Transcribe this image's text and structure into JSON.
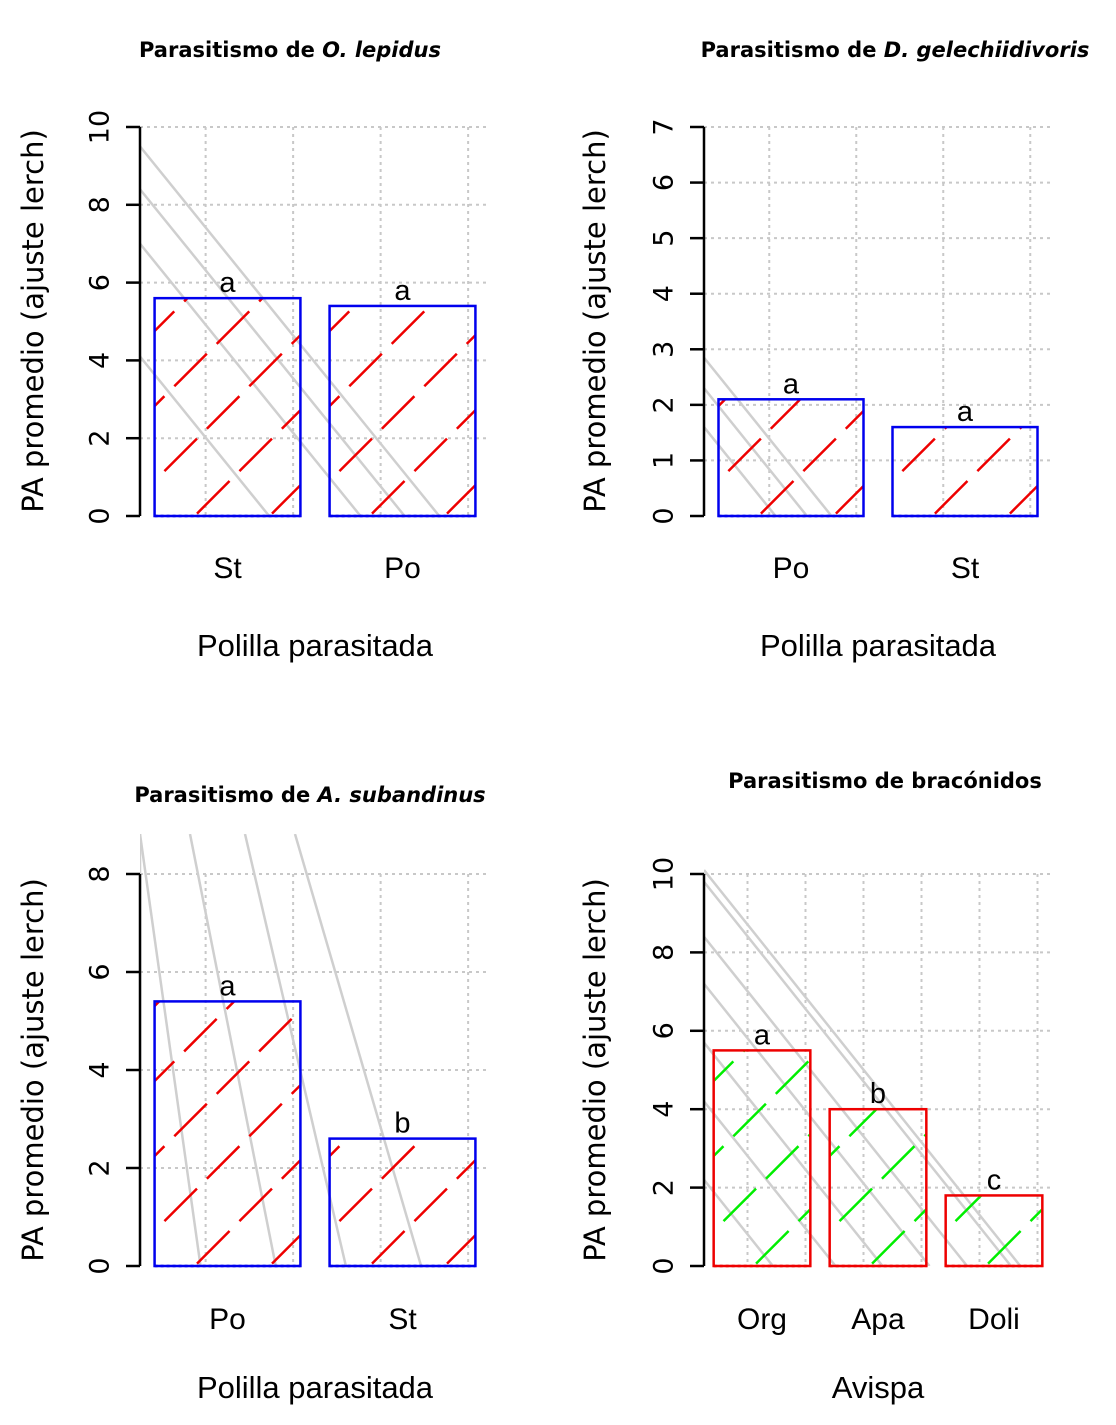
{
  "chart_data": [
    {
      "type": "bar",
      "title_prefix": "Parasitismo de ",
      "title_italic": "O. lepidus",
      "ylabel": "PA promedio (ajuste lerch)",
      "xlabel": "Polilla parasitada",
      "categories": [
        "St",
        "Po"
      ],
      "values": [
        5.6,
        5.4
      ],
      "letters": [
        "a",
        "a"
      ],
      "ylim": [
        0,
        10
      ],
      "yticks": [
        0,
        2,
        4,
        6,
        8,
        10
      ],
      "bar_border": "#0000ee",
      "hatch_color": "#ee0000",
      "grid": true
    },
    {
      "type": "bar",
      "title_prefix": "Parasitismo de ",
      "title_italic": "D. gelechiidivoris",
      "ylabel": "PA promedio (ajuste lerch)",
      "xlabel": "Polilla parasitada",
      "categories": [
        "Po",
        "St"
      ],
      "values": [
        2.1,
        1.6
      ],
      "letters": [
        "a",
        "a"
      ],
      "ylim": [
        0,
        7
      ],
      "yticks": [
        0,
        1,
        2,
        3,
        4,
        5,
        6,
        7
      ],
      "bar_border": "#0000ee",
      "hatch_color": "#ee0000",
      "grid": true
    },
    {
      "type": "bar",
      "title_prefix": "Parasitismo de ",
      "title_italic": "A. subandinus",
      "ylabel": "PA promedio (ajuste lerch)",
      "xlabel": "Polilla parasitada",
      "categories": [
        "Po",
        "St"
      ],
      "values": [
        5.4,
        2.6
      ],
      "letters": [
        "a",
        "b"
      ],
      "ylim": [
        0,
        8
      ],
      "yticks": [
        0,
        2,
        4,
        6,
        8
      ],
      "bar_border": "#0000ee",
      "hatch_color": "#ee0000",
      "grid": true
    },
    {
      "type": "bar",
      "title_prefix": "Parasitismo de bracónidos",
      "title_italic": "",
      "ylabel": "PA promedio (ajuste lerch)",
      "xlabel": "Avispa",
      "categories": [
        "Org",
        "Apa",
        "Doli"
      ],
      "values": [
        5.5,
        4.0,
        1.8
      ],
      "letters": [
        "a",
        "b",
        "c"
      ],
      "ylim": [
        0,
        10
      ],
      "yticks": [
        0,
        2,
        4,
        6,
        8,
        10
      ],
      "bar_border": "#ee0000",
      "hatch_color": "#00ee00",
      "grid": true
    }
  ]
}
